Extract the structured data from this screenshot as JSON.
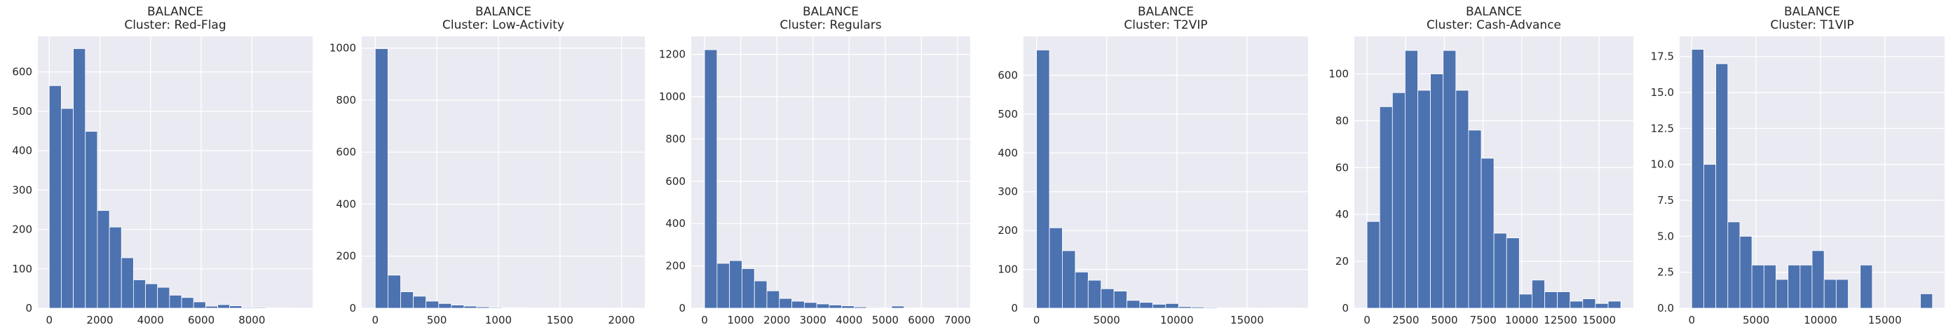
{
  "chart_data": [
    {
      "type": "bar",
      "title_line1": "BALANCE",
      "title_line2": "Cluster: Red-Flag",
      "bin_start": 0,
      "bin_width": 475,
      "values": [
        565,
        507,
        659,
        449,
        248,
        206,
        128,
        72,
        62,
        53,
        33,
        27,
        16,
        5,
        9,
        6,
        2,
        2,
        1,
        1
      ],
      "xlim": [
        -450,
        10400
      ],
      "ylim": [
        0,
        690
      ],
      "xticks": [
        0,
        2000,
        4000,
        6000,
        8000
      ],
      "yticks": [
        0,
        100,
        200,
        300,
        400,
        500,
        600
      ],
      "xtick_labels": [
        "0",
        "2000",
        "4000",
        "6000",
        "8000"
      ],
      "ytick_labels": [
        "0",
        "100",
        "200",
        "300",
        "400",
        "500",
        "600"
      ]
    },
    {
      "type": "bar",
      "title_line1": "BALANCE",
      "title_line2": "Cluster: Low-Activity",
      "bin_start": 0,
      "bin_width": 103,
      "values": [
        998,
        127,
        63,
        46,
        27,
        18,
        12,
        8,
        5,
        3,
        2,
        2,
        1,
        1,
        1,
        1,
        0,
        1,
        0,
        1
      ],
      "xlim": [
        -110,
        2190
      ],
      "ylim": [
        0,
        1045
      ],
      "xticks": [
        0,
        500,
        1000,
        1500,
        2000
      ],
      "yticks": [
        0,
        200,
        400,
        600,
        800,
        1000
      ],
      "xtick_labels": [
        "0",
        "500",
        "1000",
        "1500",
        "2000"
      ],
      "ytick_labels": [
        "0",
        "200",
        "400",
        "600",
        "800",
        "1000"
      ]
    },
    {
      "type": "bar",
      "title_line1": "BALANCE",
      "title_line2": "Cluster: Regulars",
      "bin_start": 0,
      "bin_width": 345,
      "values": [
        1222,
        212,
        225,
        187,
        129,
        82,
        46,
        33,
        27,
        20,
        15,
        11,
        6,
        3,
        2,
        10,
        1,
        2,
        1,
        1
      ],
      "xlim": [
        -370,
        7350
      ],
      "ylim": [
        0,
        1285
      ],
      "xticks": [
        0,
        1000,
        2000,
        3000,
        4000,
        5000,
        6000,
        7000
      ],
      "yticks": [
        0,
        200,
        400,
        600,
        800,
        1000,
        1200
      ],
      "xtick_labels": [
        "0",
        "1000",
        "2000",
        "3000",
        "4000",
        "5000",
        "6000",
        "7000"
      ],
      "ytick_labels": [
        "0",
        "200",
        "400",
        "600",
        "800",
        "1000",
        "1200"
      ]
    },
    {
      "type": "bar",
      "title_line1": "BALANCE",
      "title_line2": "Cluster: T2VIP",
      "bin_start": 0,
      "bin_width": 920,
      "values": [
        665,
        207,
        148,
        93,
        72,
        50,
        44,
        20,
        15,
        10,
        12,
        4,
        3,
        2,
        1,
        1,
        1,
        0,
        1,
        1
      ],
      "xlim": [
        -930,
        19350
      ],
      "ylim": [
        0,
        700
      ],
      "xticks": [
        0,
        5000,
        10000,
        15000
      ],
      "yticks": [
        0,
        100,
        200,
        300,
        400,
        500,
        600
      ],
      "xtick_labels": [
        "0",
        "5000",
        "10000",
        "15000"
      ],
      "ytick_labels": [
        "0",
        "100",
        "200",
        "300",
        "400",
        "500",
        "600"
      ]
    },
    {
      "type": "bar",
      "title_line1": "BALANCE",
      "title_line2": "Cluster: Cash-Advance",
      "bin_start": 0,
      "bin_width": 820,
      "values": [
        37,
        86,
        92,
        110,
        93,
        100,
        110,
        93,
        76,
        64,
        32,
        30,
        6,
        12,
        7,
        7,
        3,
        4,
        2,
        3
      ],
      "xlim": [
        -820,
        17210
      ],
      "ylim": [
        0,
        116
      ],
      "xticks": [
        0,
        2500,
        5000,
        7500,
        10000,
        12500,
        15000
      ],
      "yticks": [
        0,
        20,
        40,
        60,
        80,
        100
      ],
      "xtick_labels": [
        "0",
        "2500",
        "5000",
        "7500",
        "10000",
        "12500",
        "15000"
      ],
      "ytick_labels": [
        "0",
        "20",
        "40",
        "60",
        "80",
        "100"
      ]
    },
    {
      "type": "bar",
      "title_line1": "BALANCE",
      "title_line2": "Cluster: T1VIP",
      "bin_start": 0,
      "bin_width": 935,
      "values": [
        18,
        10,
        17,
        6,
        5,
        3,
        3,
        2,
        3,
        3,
        4,
        2,
        2,
        0,
        3,
        0,
        0,
        0,
        0,
        1
      ],
      "xlim": [
        -940,
        19640
      ],
      "ylim": [
        0,
        18.9
      ],
      "xticks": [
        0,
        5000,
        10000,
        15000
      ],
      "yticks": [
        0,
        2.5,
        5.0,
        7.5,
        10.0,
        12.5,
        15.0,
        17.5
      ],
      "xtick_labels": [
        "0",
        "5000",
        "10000",
        "15000"
      ],
      "ytick_labels": [
        "0.0",
        "2.5",
        "5.0",
        "7.5",
        "10.0",
        "12.5",
        "15.0",
        "17.5"
      ]
    }
  ],
  "colors": {
    "bar": "#4c72b0",
    "bar_edge": "#ffffff",
    "plot_bg": "#eaeaf2",
    "grid": "#ffffff",
    "text": "#262626"
  }
}
